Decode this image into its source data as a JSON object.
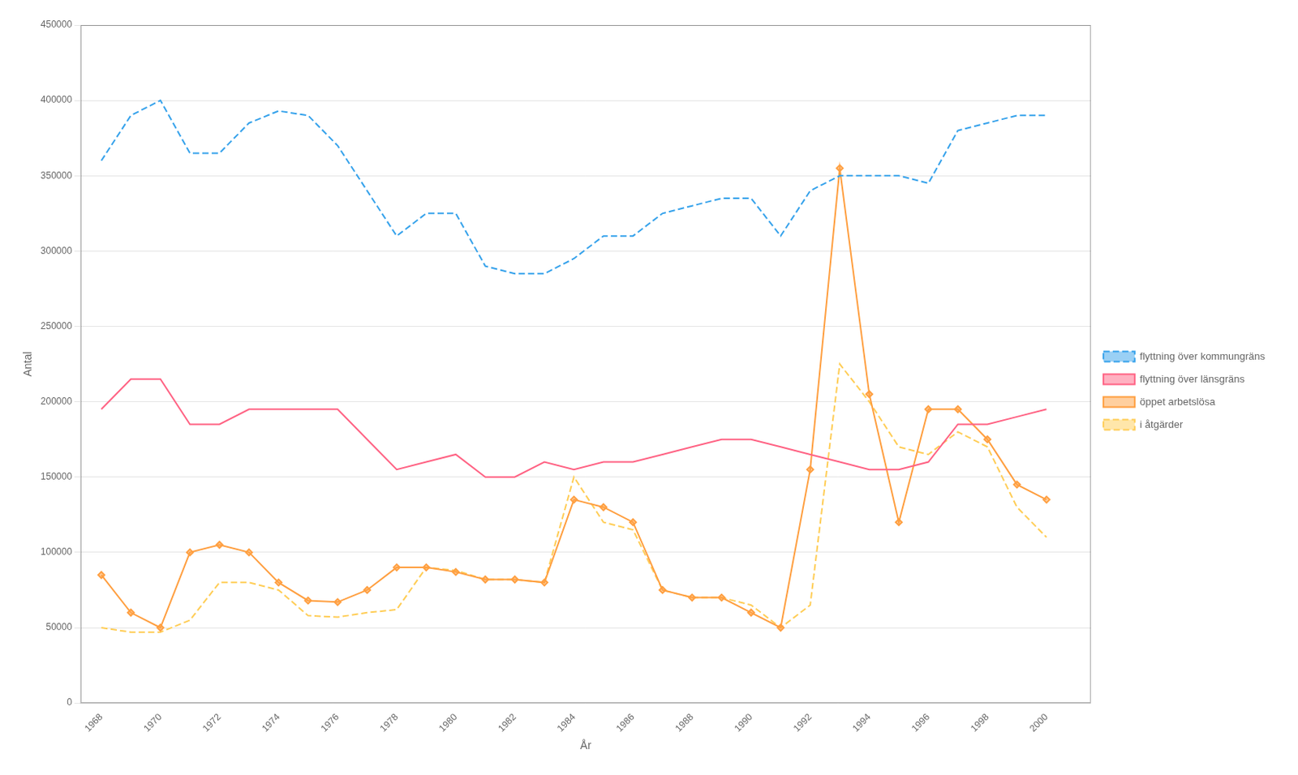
{
  "chart_data": {
    "type": "line",
    "xlabel": "År",
    "ylabel": "Antal",
    "x": [
      1968,
      1969,
      1970,
      1971,
      1972,
      1973,
      1974,
      1975,
      1976,
      1977,
      1978,
      1979,
      1980,
      1981,
      1982,
      1983,
      1984,
      1985,
      1986,
      1987,
      1988,
      1989,
      1990,
      1991,
      1992,
      1993,
      1994,
      1995,
      1996,
      1997,
      1998,
      1999,
      2000
    ],
    "series": [
      {
        "name": "flyttning över kommungräns",
        "line_style": "dashed",
        "marker": "none",
        "values": [
          360000,
          390000,
          400000,
          365000,
          365000,
          385000,
          393000,
          390000,
          370000,
          340000,
          310000,
          325000,
          325000,
          290000,
          285000,
          285000,
          295000,
          310000,
          310000,
          325000,
          330000,
          335000,
          335000,
          310000,
          340000,
          350000,
          350000,
          350000,
          345000,
          380000,
          385000,
          390000,
          390000
        ]
      },
      {
        "name": "flyttning över länsgräns",
        "line_style": "solid",
        "marker": "none",
        "values": [
          195000,
          215000,
          215000,
          185000,
          185000,
          195000,
          195000,
          195000,
          195000,
          175000,
          155000,
          160000,
          165000,
          150000,
          150000,
          160000,
          155000,
          160000,
          160000,
          165000,
          170000,
          175000,
          175000,
          170000,
          165000,
          160000,
          155000,
          155000,
          160000,
          185000,
          185000,
          190000,
          195000
        ]
      },
      {
        "name": "öppet arbetslösa",
        "line_style": "solid",
        "marker": "diamond",
        "values": [
          85000,
          60000,
          50000,
          100000,
          105000,
          100000,
          80000,
          68000,
          67000,
          75000,
          90000,
          90000,
          87000,
          82000,
          82000,
          80000,
          135000,
          130000,
          120000,
          75000,
          70000,
          70000,
          60000,
          50000,
          155000,
          355000,
          205000,
          120000,
          195000,
          195000,
          175000,
          145000,
          135000
        ]
      },
      {
        "name": "i åtgärder",
        "line_style": "dashed",
        "marker": "none",
        "values": [
          50000,
          47000,
          47000,
          55000,
          80000,
          80000,
          75000,
          58000,
          57000,
          60000,
          62000,
          90000,
          88000,
          82000,
          82000,
          80000,
          150000,
          120000,
          115000,
          75000,
          70000,
          70000,
          65000,
          50000,
          65000,
          225000,
          200000,
          170000,
          165000,
          180000,
          170000,
          130000,
          110000
        ]
      }
    ],
    "xlim": [
      1967.3,
      2001.5
    ],
    "xticks": [
      1968,
      1970,
      1972,
      1974,
      1976,
      1978,
      1980,
      1982,
      1984,
      1986,
      1988,
      1990,
      1992,
      1994,
      1996,
      1998,
      2000
    ],
    "ylim": [
      0,
      450000
    ],
    "yticks": [
      0,
      50000,
      100000,
      150000,
      200000,
      250000,
      300000,
      350000,
      400000,
      450000
    ],
    "grid": true,
    "legend": "right"
  }
}
